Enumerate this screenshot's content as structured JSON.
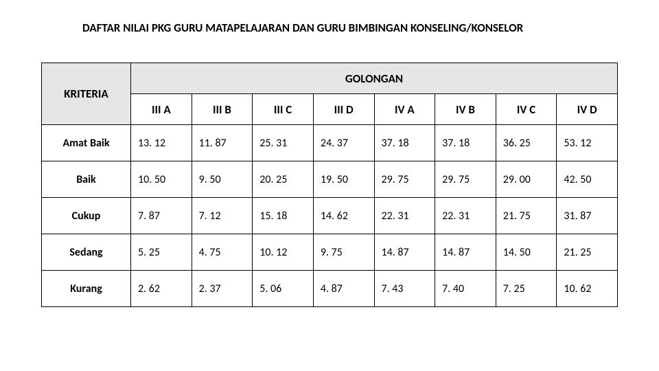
{
  "title": "DAFTAR NILAI PKG GURU MATAPELAJARAN DAN GURU BIMBINGAN KONSELING/KONSELOR",
  "table": {
    "kriteria_header": "KRITERIA",
    "golongan_header": "GOLONGAN",
    "columns": [
      "III A",
      "III B",
      "III C",
      "III D",
      "IV A",
      "IV B",
      "IV C",
      "IV D"
    ],
    "rows": [
      {
        "label": "Amat Baik",
        "values": [
          "13. 12",
          "11. 87",
          "25. 31",
          "24. 37",
          "37. 18",
          "37. 18",
          "36. 25",
          "53. 12"
        ]
      },
      {
        "label": "Baik",
        "values": [
          "10. 50",
          "9. 50",
          "20. 25",
          "19. 50",
          "29. 75",
          "29. 75",
          "29. 00",
          "42. 50"
        ]
      },
      {
        "label": "Cukup",
        "values": [
          "7. 87",
          "7. 12",
          "15. 18",
          "14. 62",
          "22. 31",
          "22. 31",
          "21. 75",
          "31. 87"
        ]
      },
      {
        "label": "Sedang",
        "values": [
          "5. 25",
          "4. 75",
          "10. 12",
          "9. 75",
          "14. 87",
          "14. 87",
          "14. 50",
          "21. 25"
        ]
      },
      {
        "label": "Kurang",
        "values": [
          "2. 62",
          "2. 37",
          "5. 06",
          "4. 87",
          "7. 43",
          "7. 40",
          "7. 25",
          "10. 62"
        ]
      }
    ],
    "colors": {
      "header_bg": "#e6e6e6",
      "border": "#000000",
      "text": "#000000",
      "cell_bg": "#ffffff"
    },
    "font": {
      "family": "Calibri",
      "title_size_pt": 13,
      "header_size_pt": 13,
      "cell_size_pt": 12
    }
  }
}
